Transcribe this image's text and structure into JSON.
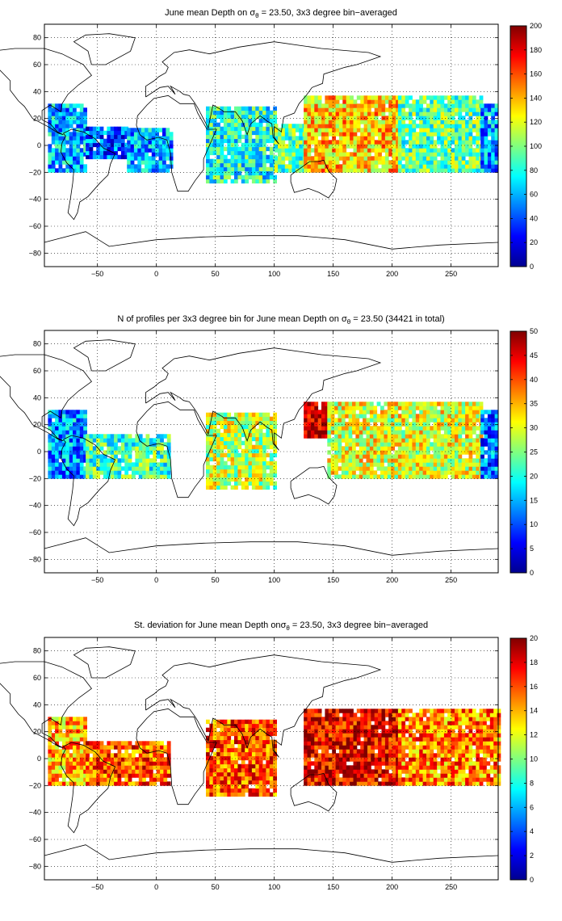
{
  "charts": [
    {
      "title_pre": "June mean Depth on ",
      "title_sym": "σ",
      "title_sub": "θ",
      "title_post": " = 23.50, 3x3 degree bin−averaged"
    },
    {
      "title_pre": "N of profiles per 3x3 degree bin for June mean Depth on ",
      "title_sym": "σ",
      "title_sub": "θ",
      "title_post": " = 23.50 (34421 in total)"
    },
    {
      "title_pre": "St. deviation for June mean Depth on",
      "title_sym": "σ",
      "title_sub": "θ",
      "title_post": " = 23.50, 3x3 degree bin−averaged"
    }
  ],
  "chart_data": [
    {
      "type": "heatmap",
      "title": "June mean Depth on σθ = 23.50, 3x3 degree bin−averaged",
      "xlim": [
        -95,
        290
      ],
      "ylim": [
        -90,
        90
      ],
      "xticks": [
        -50,
        0,
        50,
        100,
        150,
        200,
        250
      ],
      "yticks": [
        -80,
        -60,
        -40,
        -20,
        0,
        20,
        40,
        60,
        80
      ],
      "colorbar": {
        "min": 0,
        "max": 200,
        "ticks": [
          0,
          20,
          40,
          60,
          80,
          100,
          120,
          140,
          160,
          180,
          200
        ]
      },
      "grid": true,
      "regions": [
        {
          "lon": [
            -92,
            -60
          ],
          "lat": [
            -20,
            30
          ],
          "value": 62
        },
        {
          "lon": [
            -60,
            -25
          ],
          "lat": [
            -10,
            12
          ],
          "value": 42
        },
        {
          "lon": [
            -25,
            12
          ],
          "lat": [
            -20,
            12
          ],
          "value": 58
        },
        {
          "lon": [
            42,
            100
          ],
          "lat": [
            -28,
            28
          ],
          "value": 80
        },
        {
          "lon": [
            100,
            125
          ],
          "lat": [
            -20,
            15
          ],
          "value": 95
        },
        {
          "lon": [
            125,
            205
          ],
          "lat": [
            -20,
            35
          ],
          "value": 135
        },
        {
          "lon": [
            205,
            275
          ],
          "lat": [
            -20,
            35
          ],
          "value": 95
        },
        {
          "lon": [
            275,
            290
          ],
          "lat": [
            -20,
            30
          ],
          "value": 55
        }
      ]
    },
    {
      "type": "heatmap",
      "title": "N of profiles per 3x3 degree bin for June mean Depth on σθ = 23.50 (34421 in total)",
      "xlim": [
        -95,
        290
      ],
      "ylim": [
        -90,
        90
      ],
      "xticks": [
        -50,
        0,
        50,
        100,
        150,
        200,
        250
      ],
      "yticks": [
        -80,
        -60,
        -40,
        -20,
        0,
        20,
        40,
        60,
        80
      ],
      "colorbar": {
        "min": 0,
        "max": 50,
        "ticks": [
          0,
          5,
          10,
          15,
          20,
          25,
          30,
          35,
          40,
          45,
          50
        ]
      },
      "grid": true,
      "total_profiles": 34421,
      "regions": [
        {
          "lon": [
            -92,
            -60
          ],
          "lat": [
            -20,
            30
          ],
          "value": 14
        },
        {
          "lon": [
            -60,
            12
          ],
          "lat": [
            -20,
            12
          ],
          "value": 22
        },
        {
          "lon": [
            42,
            100
          ],
          "lat": [
            -28,
            28
          ],
          "value": 28
        },
        {
          "lon": [
            125,
            145
          ],
          "lat": [
            10,
            35
          ],
          "value": 48
        },
        {
          "lon": [
            145,
            275
          ],
          "lat": [
            -20,
            35
          ],
          "value": 30
        },
        {
          "lon": [
            275,
            290
          ],
          "lat": [
            -20,
            30
          ],
          "value": 12
        }
      ]
    },
    {
      "type": "heatmap",
      "title": "St. deviation for June mean Depth on σθ = 23.50, 3x3 degree bin−averaged",
      "xlim": [
        -95,
        290
      ],
      "ylim": [
        -90,
        90
      ],
      "xticks": [
        -50,
        0,
        50,
        100,
        150,
        200,
        250
      ],
      "yticks": [
        -80,
        -60,
        -40,
        -20,
        0,
        20,
        40,
        60,
        80
      ],
      "colorbar": {
        "min": 0,
        "max": 20,
        "ticks": [
          0,
          2,
          4,
          6,
          8,
          10,
          12,
          14,
          16,
          18,
          20
        ]
      },
      "grid": true,
      "regions": [
        {
          "lon": [
            -92,
            -60
          ],
          "lat": [
            -20,
            30
          ],
          "value": 14
        },
        {
          "lon": [
            -60,
            12
          ],
          "lat": [
            -20,
            12
          ],
          "value": 16
        },
        {
          "lon": [
            42,
            100
          ],
          "lat": [
            -28,
            28
          ],
          "value": 16
        },
        {
          "lon": [
            125,
            205
          ],
          "lat": [
            -20,
            35
          ],
          "value": 18
        },
        {
          "lon": [
            205,
            290
          ],
          "lat": [
            -20,
            35
          ],
          "value": 15
        }
      ]
    }
  ]
}
